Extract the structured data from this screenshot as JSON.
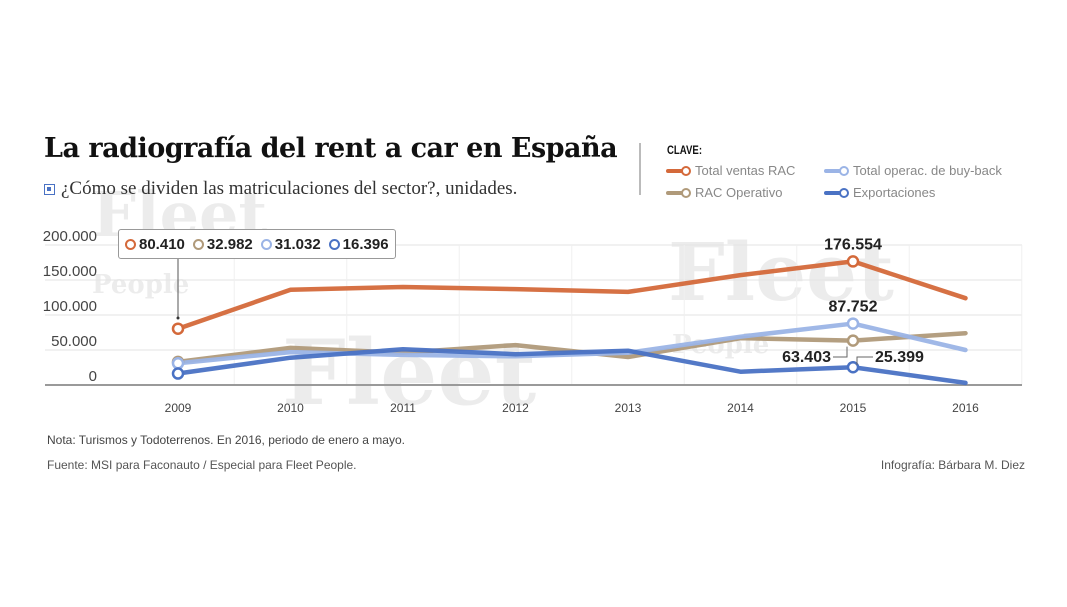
{
  "header": {
    "title": "La radiografía del rent a car en España",
    "subtitle": "¿Cómo se dividen las matriculaciones del sector?, unidades."
  },
  "legend": {
    "title": "CLAVE:",
    "items": [
      {
        "label": "Total ventas RAC",
        "color": "#d4693a"
      },
      {
        "label": "Total operac. de buy-back",
        "color": "#9bb4e6"
      },
      {
        "label": "RAC Operativo",
        "color": "#b09a7a"
      },
      {
        "label": "Exportaciones",
        "color": "#4a72c4"
      }
    ]
  },
  "tooltip": {
    "values": [
      "80.410",
      "32.982",
      "31.032",
      "16.396"
    ]
  },
  "annotations": {
    "a2015_total": "176.554",
    "a2015_buyback": "87.752",
    "a2015_operativo": "63.403",
    "a2015_export": "25.399"
  },
  "footer": {
    "note": "Nota: Turismos y Todoterrenos. En 2016, periodo de enero a mayo.",
    "source": "Fuente: MSI para Faconauto / Especial para Fleet People.",
    "credit": "Infografía: Bárbara M. Diez"
  },
  "watermark": {
    "main": "Fleet",
    "sub": "People"
  },
  "chart_data": {
    "type": "line",
    "title": "La radiografía del rent a car en España",
    "subtitle": "¿Cómo se dividen las matriculaciones del sector?, unidades.",
    "xlabel": "",
    "ylabel": "unidades",
    "categories": [
      "2009",
      "2010",
      "2011",
      "2012",
      "2013",
      "2014",
      "2015",
      "2016"
    ],
    "yticks": [
      0,
      50000,
      100000,
      150000,
      200000
    ],
    "ytick_labels": [
      "0",
      "50.000",
      "100.000",
      "150.000",
      "200.000"
    ],
    "ylim": [
      0,
      200000
    ],
    "grid": true,
    "legend_position": "top-right",
    "series": [
      {
        "name": "Total ventas RAC",
        "color": "#d4693a",
        "values": [
          80410,
          136000,
          140000,
          137000,
          133000,
          157000,
          176554,
          124000
        ]
      },
      {
        "name": "RAC Operativo",
        "color": "#b09a7a",
        "values": [
          32982,
          53000,
          46000,
          57000,
          40000,
          67000,
          63403,
          74000
        ]
      },
      {
        "name": "Total operac. de buy-back",
        "color": "#9bb4e6",
        "values": [
          31032,
          47000,
          43000,
          41000,
          46000,
          69000,
          87752,
          50000
        ]
      },
      {
        "name": "Exportaciones",
        "color": "#4a72c4",
        "values": [
          16396,
          39000,
          51000,
          44000,
          49000,
          19000,
          25399,
          3000
        ]
      }
    ],
    "markers": [
      {
        "series": 0,
        "index": 0
      },
      {
        "series": 1,
        "index": 0
      },
      {
        "series": 2,
        "index": 0
      },
      {
        "series": 3,
        "index": 0
      },
      {
        "series": 0,
        "index": 6
      },
      {
        "series": 1,
        "index": 6
      },
      {
        "series": 2,
        "index": 6
      },
      {
        "series": 3,
        "index": 6
      }
    ]
  }
}
